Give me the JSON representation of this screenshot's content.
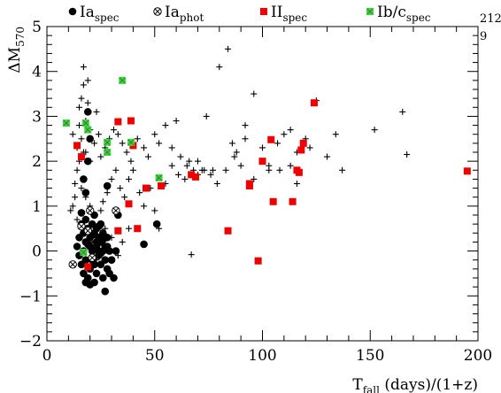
{
  "chart_data": {
    "type": "scatter",
    "xlabel": {
      "main": "T",
      "sub": "fall",
      "rest": " (days)/(1+z)"
    },
    "ylabel": {
      "main": "ΔM",
      "sub": "570"
    },
    "xlim": [
      0,
      200
    ],
    "ylim": [
      -2,
      5
    ],
    "xticks": [
      "0",
      "50",
      "100",
      "150",
      "200"
    ],
    "yticks": [
      "−2",
      "−1",
      "0",
      "1",
      "2",
      "3",
      "4",
      "5"
    ],
    "xtick_values": [
      0,
      50,
      100,
      150,
      200
    ],
    "ytick_values": [
      -2,
      -1,
      0,
      1,
      2,
      3,
      4,
      5
    ],
    "grid": false,
    "legend_position": "top",
    "corner_lines": [
      "212",
      "9"
    ],
    "colors": {
      "II_spec": "#ee0000",
      "Ibc_spec": "#33dd33",
      "black": "#000000"
    },
    "series": [
      {
        "key": "Ia_spec",
        "label_main": "Ia",
        "label_sub": "spec",
        "marker": "filled-circle",
        "points": [
          [
            14,
            0.1
          ],
          [
            15,
            0.3
          ],
          [
            15,
            -0.1
          ],
          [
            16,
            0.6
          ],
          [
            16,
            -0.3
          ],
          [
            17,
            0.4
          ],
          [
            17,
            0.0
          ],
          [
            17,
            -0.5
          ],
          [
            18,
            0.2
          ],
          [
            18,
            0.7
          ],
          [
            18,
            -0.2
          ],
          [
            19,
            0.5
          ],
          [
            19,
            -0.6
          ],
          [
            20,
            0.1
          ],
          [
            20,
            0.3
          ],
          [
            20,
            -0.4
          ],
          [
            21,
            0.6
          ],
          [
            21,
            0.0
          ],
          [
            21,
            -0.2
          ],
          [
            22,
            0.4
          ],
          [
            22,
            -0.3
          ],
          [
            22,
            0.8
          ],
          [
            23,
            0.1
          ],
          [
            23,
            0.5
          ],
          [
            23,
            -0.5
          ],
          [
            24,
            0.3
          ],
          [
            24,
            0.0
          ],
          [
            24,
            -0.1
          ],
          [
            25,
            0.2
          ],
          [
            25,
            -0.3
          ],
          [
            25,
            0.6
          ],
          [
            26,
            0.4
          ],
          [
            26,
            0.0
          ],
          [
            26,
            -0.6
          ],
          [
            27,
            0.1
          ],
          [
            27,
            -0.2
          ],
          [
            28,
            0.3
          ],
          [
            28,
            -0.4
          ],
          [
            29,
            0.0
          ],
          [
            29,
            -0.5
          ],
          [
            30,
            -0.2
          ],
          [
            31,
            -0.6
          ],
          [
            32,
            0.0
          ],
          [
            18,
            -0.7
          ],
          [
            20,
            -0.75
          ],
          [
            27,
            -0.9
          ],
          [
            22,
            -0.7
          ],
          [
            16,
            0.85
          ],
          [
            18,
            1.3
          ],
          [
            17,
            1.6
          ],
          [
            19,
            2.0
          ],
          [
            20,
            2.5
          ],
          [
            19,
            3.1
          ],
          [
            28,
            1.45
          ],
          [
            33,
            0.8
          ],
          [
            45,
            0.15
          ],
          [
            51,
            0.6
          ],
          [
            23,
            0.2
          ],
          [
            24,
            0.55
          ],
          [
            21,
            0.35
          ],
          [
            26,
            0.25
          ],
          [
            25,
            -0.05
          ],
          [
            22,
            0.05
          ],
          [
            19,
            0.15
          ],
          [
            28,
            0.1
          ]
        ]
      },
      {
        "key": "Ia_phot",
        "label_main": "Ia",
        "label_sub": "phot",
        "marker": "circle-x",
        "points": [
          [
            12,
            -0.3
          ],
          [
            19,
            0.45
          ],
          [
            20,
            0.9
          ],
          [
            32,
            0.9
          ],
          [
            16,
            0.55
          ],
          [
            21,
            -0.15
          ]
        ]
      },
      {
        "key": "II_spec",
        "label_main": "II",
        "label_sub": "spec",
        "marker": "filled-square",
        "points": [
          [
            14,
            2.35
          ],
          [
            16,
            2.1
          ],
          [
            33,
            2.88
          ],
          [
            39,
            2.9
          ],
          [
            40,
            2.35
          ],
          [
            42,
            0.5
          ],
          [
            38,
            1.05
          ],
          [
            46,
            1.4
          ],
          [
            53,
            1.45
          ],
          [
            67,
            1.7
          ],
          [
            69,
            1.65
          ],
          [
            84,
            0.45
          ],
          [
            94,
            1.5
          ],
          [
            94,
            1.45
          ],
          [
            98,
            -0.22
          ],
          [
            100,
            2.0
          ],
          [
            104,
            2.48
          ],
          [
            105,
            1.1
          ],
          [
            114,
            1.1
          ],
          [
            116,
            1.8
          ],
          [
            117,
            1.75
          ],
          [
            118,
            2.25
          ],
          [
            119,
            2.4
          ],
          [
            124,
            3.3
          ],
          [
            195,
            1.78
          ],
          [
            19,
            -0.35
          ],
          [
            33,
            0.45
          ]
        ]
      },
      {
        "key": "Ibc_spec",
        "label_main": "Ib/c",
        "label_sub": "spec",
        "marker": "green-box-x",
        "points": [
          [
            9,
            2.85
          ],
          [
            18,
            2.85
          ],
          [
            19,
            2.7
          ],
          [
            35,
            3.8
          ],
          [
            28,
            2.42
          ],
          [
            28,
            2.2
          ],
          [
            39,
            2.42
          ],
          [
            52,
            1.63
          ],
          [
            17,
            -0.03
          ]
        ]
      },
      {
        "key": "other",
        "marker": "plus",
        "points": [
          [
            17,
            4.1
          ],
          [
            19,
            3.8
          ],
          [
            17,
            3.7
          ],
          [
            16,
            3.4
          ],
          [
            15,
            3.2
          ],
          [
            19,
            3.3
          ],
          [
            18,
            2.9
          ],
          [
            15,
            2.8
          ],
          [
            20,
            2.7
          ],
          [
            23,
            3.1
          ],
          [
            12,
            2.6
          ],
          [
            14,
            2.3
          ],
          [
            16,
            2.5
          ],
          [
            18,
            2.2
          ],
          [
            20,
            2.0
          ],
          [
            22,
            2.4
          ],
          [
            24,
            2.6
          ],
          [
            25,
            2.1
          ],
          [
            27,
            2.3
          ],
          [
            29,
            2.5
          ],
          [
            31,
            2.7
          ],
          [
            33,
            2.6
          ],
          [
            35,
            2.4
          ],
          [
            37,
            2.2
          ],
          [
            39,
            2.0
          ],
          [
            42,
            2.5
          ],
          [
            45,
            2.3
          ],
          [
            47,
            2.1
          ],
          [
            50,
            2.6
          ],
          [
            52,
            2.4
          ],
          [
            55,
            2.8
          ],
          [
            58,
            2.3
          ],
          [
            60,
            2.9
          ],
          [
            62,
            2.1
          ],
          [
            65,
            1.9
          ],
          [
            68,
            1.8
          ],
          [
            70,
            2.0
          ],
          [
            72,
            1.8
          ],
          [
            74,
            3.0
          ],
          [
            76,
            1.7
          ],
          [
            80,
            4.1
          ],
          [
            84,
            4.5
          ],
          [
            86,
            2.4
          ],
          [
            88,
            2.2
          ],
          [
            90,
            1.9
          ],
          [
            92,
            2.5
          ],
          [
            96,
            3.5
          ],
          [
            100,
            2.3
          ],
          [
            103,
            1.9
          ],
          [
            107,
            2.4
          ],
          [
            110,
            2.6
          ],
          [
            113,
            2.7
          ],
          [
            116,
            2.2
          ],
          [
            120,
            2.5
          ],
          [
            125,
            3.35
          ],
          [
            130,
            2.1
          ],
          [
            134,
            2.6
          ],
          [
            137,
            1.8
          ],
          [
            152,
            2.7
          ],
          [
            165,
            3.1
          ],
          [
            167,
            2.15
          ],
          [
            67,
            -0.08
          ],
          [
            14,
            1.8
          ],
          [
            13,
            1.5
          ],
          [
            16,
            1.4
          ],
          [
            18,
            1.2
          ],
          [
            20,
            1.0
          ],
          [
            22,
            0.8
          ],
          [
            24,
            0.6
          ],
          [
            26,
            1.1
          ],
          [
            28,
            1.3
          ],
          [
            30,
            1.6
          ],
          [
            32,
            1.8
          ],
          [
            34,
            1.4
          ],
          [
            36,
            1.2
          ],
          [
            38,
            1.6
          ],
          [
            40,
            1.8
          ],
          [
            43,
            1.3
          ],
          [
            45,
            1.0
          ],
          [
            48,
            1.4
          ],
          [
            50,
            0.9
          ],
          [
            52,
            0.5
          ],
          [
            55,
            1.5
          ],
          [
            58,
            1.9
          ],
          [
            61,
            1.7
          ],
          [
            64,
            1.6
          ],
          [
            66,
            2.0
          ],
          [
            70,
            1.7
          ],
          [
            73,
            1.8
          ],
          [
            77,
            1.8
          ],
          [
            79,
            1.5
          ],
          [
            83,
            1.8
          ],
          [
            87,
            2.1
          ],
          [
            92,
            2.8
          ],
          [
            96,
            1.6
          ],
          [
            103,
            1.8
          ],
          [
            108,
            1.8
          ],
          [
            113,
            1.9
          ],
          [
            116,
            1.5
          ],
          [
            122,
            2.3
          ],
          [
            12,
            1.0
          ],
          [
            14,
            0.7
          ],
          [
            21,
            0.2
          ],
          [
            23,
            -0.2
          ],
          [
            25,
            0.9
          ],
          [
            27,
            0.5
          ],
          [
            30,
            0.3
          ],
          [
            33,
            -0.1
          ],
          [
            35,
            0.2
          ],
          [
            38,
            0.5
          ],
          [
            15,
            2.0
          ],
          [
            17,
            2.2
          ],
          [
            13,
            1.2
          ],
          [
            11,
            0.9
          ]
        ]
      }
    ]
  }
}
